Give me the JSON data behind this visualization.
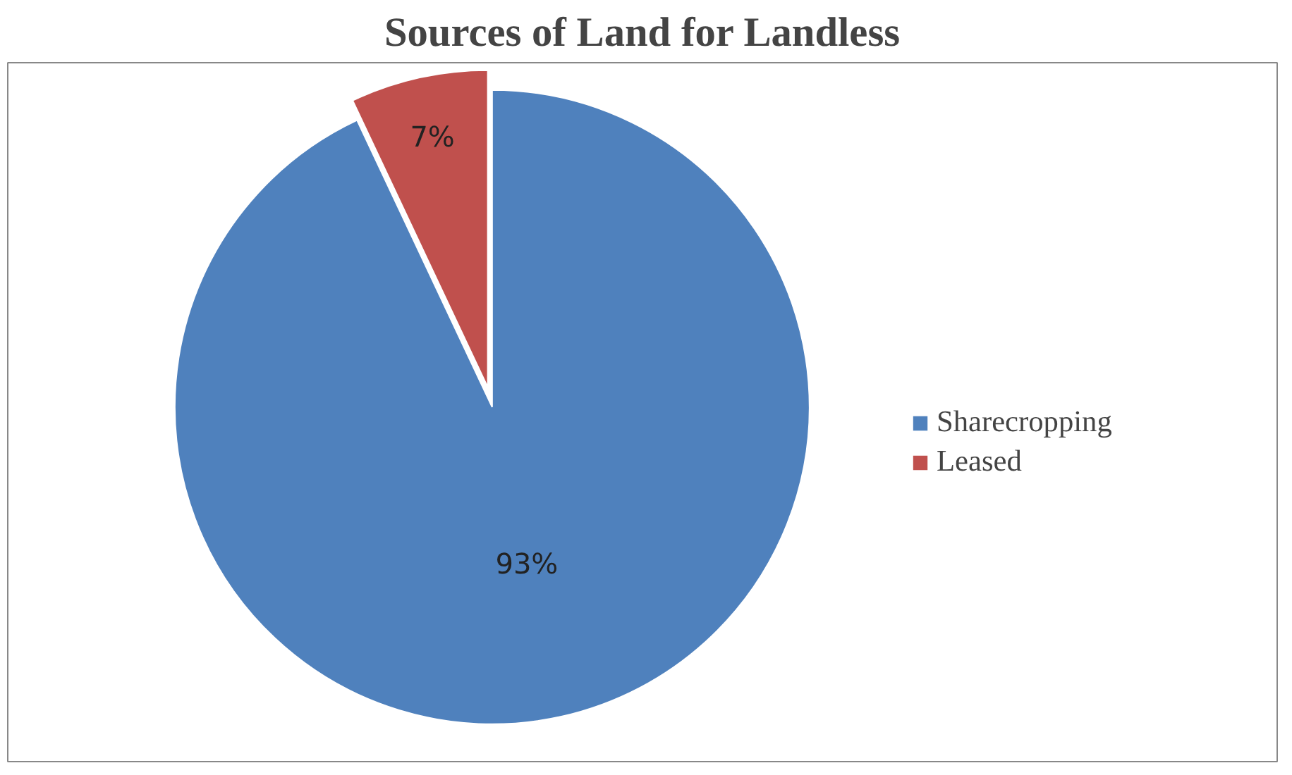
{
  "chart_data": {
    "type": "pie",
    "title": "Sources of Land for Landless",
    "categories": [
      "Sharecropping",
      "Leased"
    ],
    "values": [
      93,
      7
    ],
    "colors": [
      "#4f81bd",
      "#c0504d"
    ],
    "value_labels": [
      "93%",
      "7%"
    ],
    "legend": "right"
  }
}
